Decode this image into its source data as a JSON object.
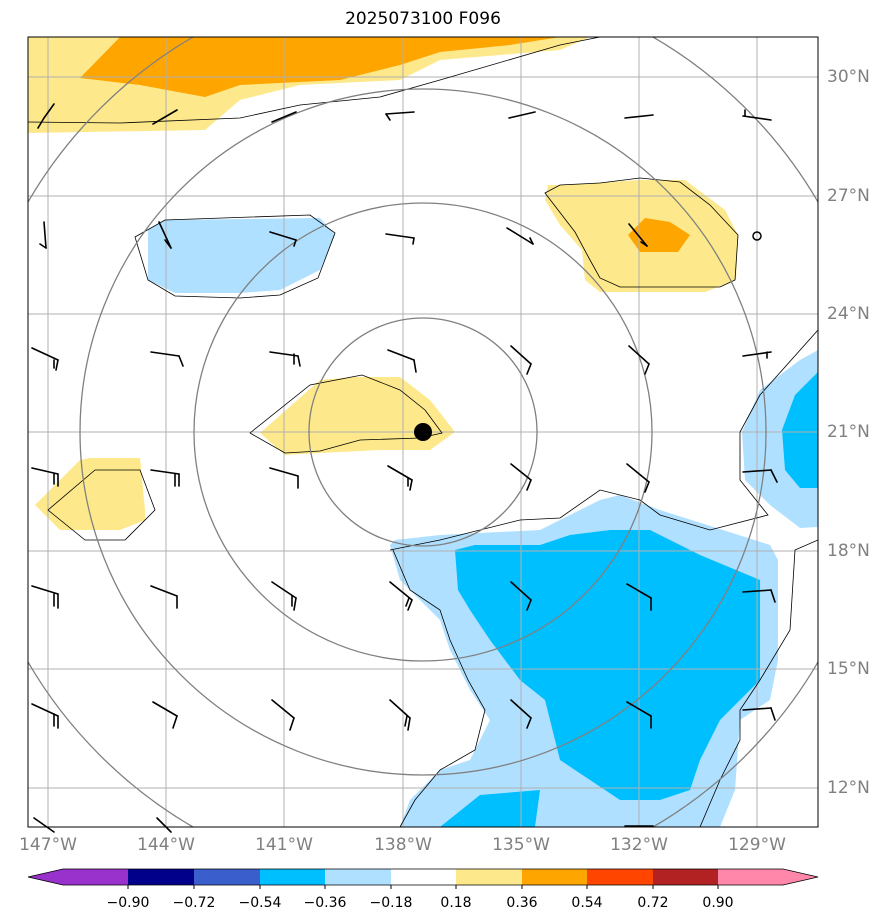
{
  "title": "2025073100 F096",
  "map": {
    "lon_labels": [
      "147°W",
      "144°W",
      "141°W",
      "138°W",
      "135°W",
      "132°W",
      "129°W"
    ],
    "lat_labels": [
      "30°N",
      "27°N",
      "24°N",
      "21°N",
      "18°N",
      "15°N",
      "12°N"
    ],
    "storm_center": {
      "lon": "137.5°W",
      "lat": "21°N"
    }
  },
  "colorbar": {
    "ticks": [
      "−0.90",
      "−0.72",
      "−0.54",
      "−0.36",
      "−0.18",
      "0.18",
      "0.36",
      "0.54",
      "0.72",
      "0.90"
    ],
    "colors": [
      "#9932CC",
      "#00008B",
      "#3A5FCD",
      "#00BFFF",
      "#B0E0FF",
      "#FFFFFF",
      "#FDE98B",
      "#FFA500",
      "#FF4500",
      "#B22222",
      "#FF88AA"
    ]
  },
  "colors": {
    "grid": "#B0B0B0",
    "range_rings": "#808080",
    "axis_labels": "#808080",
    "wind_barbs": "#000000",
    "coastline_contour": "#000000"
  }
}
